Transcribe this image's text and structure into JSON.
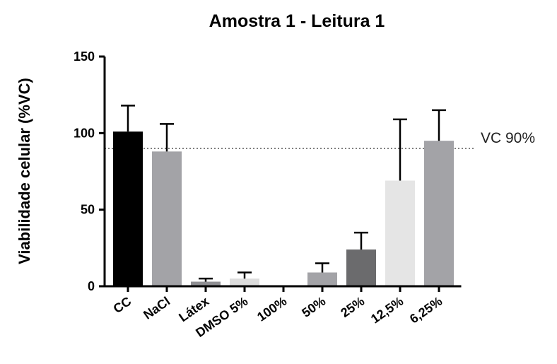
{
  "chart_data": {
    "type": "bar",
    "title": "Amostra 1 - Leitura 1",
    "ylabel": "Viabilidade celular (%VC)",
    "xlabel": "",
    "ylim": [
      0,
      150
    ],
    "yticks": [
      0,
      50,
      100,
      150
    ],
    "categories": [
      "CC",
      "NaCl",
      "Látex",
      "DMSO 5%",
      "100%",
      "50%",
      "25%",
      "12,5%",
      "6,25%"
    ],
    "values": [
      101,
      88,
      3,
      5,
      0,
      9,
      24,
      69,
      95
    ],
    "errors": [
      17,
      18,
      2,
      4,
      0,
      6,
      11,
      40,
      20
    ],
    "colors": [
      "#000000",
      "#a3a3a7",
      "#8f8f93",
      "#dcdcdc",
      "#ffffff",
      "#a3a3a7",
      "#6b6b6d",
      "#e5e5e5",
      "#a3a3a7"
    ],
    "reference_line": {
      "value": 90,
      "label": "VC 90%"
    },
    "grid": false,
    "legend": "none"
  }
}
